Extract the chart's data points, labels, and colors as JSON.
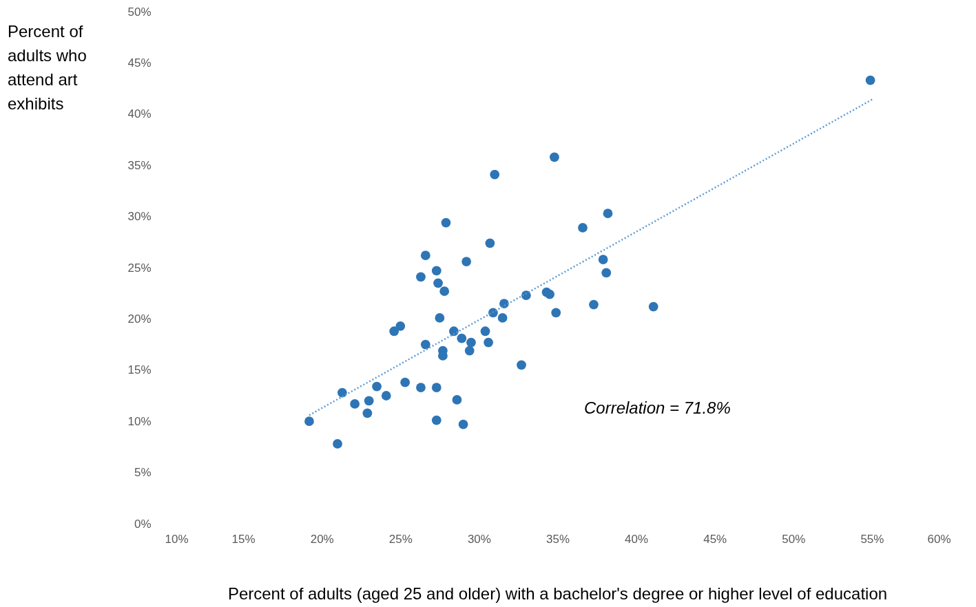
{
  "chart_data": {
    "type": "scatter",
    "xlabel": "Percent of adults (aged 25 and older) with a bachelor's degree or higher level of education",
    "ylabel": "Percent of adults who attend art exhibits",
    "annotations": [
      "Correlation = 71.8%"
    ],
    "xlim": [
      10,
      60
    ],
    "ylim": [
      0,
      50
    ],
    "xticks": [
      {
        "value": 10,
        "label": "10%"
      },
      {
        "value": 15,
        "label": "15%"
      },
      {
        "value": 20,
        "label": "20%"
      },
      {
        "value": 25,
        "label": "25%"
      },
      {
        "value": 30,
        "label": "30%"
      },
      {
        "value": 35,
        "label": "35%"
      },
      {
        "value": 40,
        "label": "40%"
      },
      {
        "value": 45,
        "label": "45%"
      },
      {
        "value": 50,
        "label": "50%"
      },
      {
        "value": 55,
        "label": "55%"
      },
      {
        "value": 60,
        "label": "60%"
      }
    ],
    "yticks": [
      {
        "value": 0,
        "label": "0%"
      },
      {
        "value": 5,
        "label": "5%"
      },
      {
        "value": 10,
        "label": "10%"
      },
      {
        "value": 15,
        "label": "15%"
      },
      {
        "value": 20,
        "label": "20%"
      },
      {
        "value": 25,
        "label": "25%"
      },
      {
        "value": 30,
        "label": "30%"
      },
      {
        "value": 35,
        "label": "35%"
      },
      {
        "value": 40,
        "label": "40%"
      },
      {
        "value": 45,
        "label": "45%"
      },
      {
        "value": 50,
        "label": "50%"
      }
    ],
    "grid": false,
    "series": [
      {
        "color": "#2e75b6",
        "marker": "circle",
        "x": [
          19.2,
          21.0,
          21.3,
          22.1,
          22.9,
          23.0,
          23.5,
          24.1,
          24.6,
          25.0,
          25.3,
          26.3,
          26.3,
          26.6,
          26.6,
          27.3,
          27.3,
          27.3,
          27.4,
          27.5,
          27.7,
          27.7,
          27.8,
          27.9,
          28.4,
          28.6,
          28.9,
          29.0,
          29.2,
          29.4,
          29.5,
          30.4,
          30.6,
          30.7,
          30.9,
          31.0,
          31.5,
          31.6,
          32.7,
          33.0,
          34.3,
          34.5,
          34.8,
          34.9,
          36.6,
          37.3,
          37.9,
          38.1,
          38.2,
          41.1,
          54.9
        ],
        "values": [
          10.0,
          7.8,
          12.8,
          11.7,
          10.8,
          12.0,
          13.4,
          12.5,
          18.8,
          19.3,
          13.8,
          13.3,
          24.1,
          26.2,
          17.5,
          13.3,
          10.1,
          24.7,
          23.5,
          20.1,
          16.9,
          16.4,
          22.7,
          29.4,
          18.8,
          12.1,
          18.1,
          9.7,
          25.6,
          16.9,
          17.7,
          18.8,
          17.7,
          27.4,
          20.6,
          34.1,
          20.1,
          21.5,
          15.5,
          22.3,
          22.6,
          22.4,
          35.8,
          20.6,
          28.9,
          21.4,
          25.8,
          24.5,
          30.3,
          21.2,
          43.3
        ]
      },
      {
        "type": "line",
        "color": "#5b9bd5",
        "line_style": "dotted",
        "x": [
          19.2,
          55.1
        ],
        "values": [
          10.6,
          41.5
        ]
      }
    ]
  }
}
